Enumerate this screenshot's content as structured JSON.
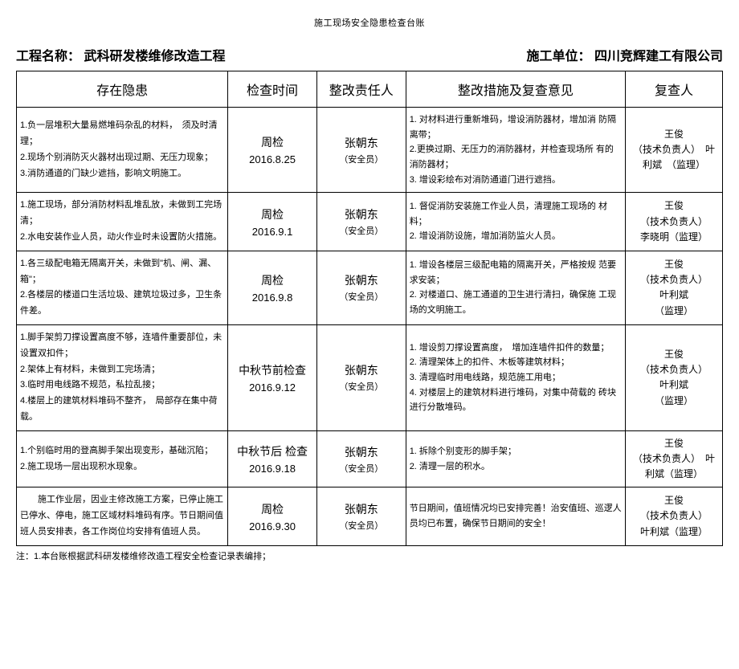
{
  "doc_title": "施工现场安全隐患检查台账",
  "header": {
    "project_label": "工程名称：",
    "project_name": "武科研发楼维修改造工程",
    "contractor_label": "施工单位：",
    "contractor_name": "四川竞辉建工有限公司"
  },
  "columns": {
    "hazard": "存在隐患",
    "time": "检查时间",
    "person": "整改责任人",
    "measure": "整改措施及复查意见",
    "reviewer": "复查人"
  },
  "rows": [
    {
      "hazard": "1.负一层堆积大量易燃堆码杂乱的材料，　须及时清理；\n2.现场个别消防灭火器材出现过期、无压力现象；\n3.消防通道的门缺少遮挡，影响文明施工。",
      "time_main": "周检",
      "time_sub": "2016.8.25",
      "person_main": "张朝东",
      "person_sub": "（安全员）",
      "measure": "1. 对材料进行重新堆码，增设消防器材，增加消 防隔离带；\n2.更换过期、无压力的消防器材，并检查现场所 有的消防器材；\n3. 增设彩绘布对消防通道门进行遮挡。",
      "reviewer": "王俊\n（技术负责人）　叶利斌　（监理）"
    },
    {
      "hazard": "1.施工现场，部分消防材料乱堆乱放，未做到工完场清；\n2.水电安装作业人员，动火作业时未设置防火措施。",
      "time_main": "周检",
      "time_sub": "2016.9.1",
      "person_main": "张朝东",
      "person_sub": "（安全员）",
      "measure": "1. 督促消防安装施工作业人员，清理施工现场的 材料；\n2. 增设消防设施，增加消防监火人员。",
      "reviewer": "王俊\n（技术负责人）\n李晓明（监理）"
    },
    {
      "hazard": "1.各三级配电箱无隔离开关，未做到\"机、闸、漏、箱\"；\n2.各楼层的楼道口生活垃圾、建筑垃圾过多，卫生条 件差。",
      "time_main": "周检",
      "time_sub": "2016.9.8",
      "person_main": "张朝东",
      "person_sub": "（安全员）",
      "measure": "1. 增设各楼层三级配电箱的隔离开关，严格按规 范要求安装；\n2. 对楼道口、施工通道的卫生进行清扫，确保施 工现场的文明施工。",
      "reviewer": "王俊\n（技术负责人）\n叶利斌\n（监理）"
    },
    {
      "hazard": "1.脚手架剪刀撑设置高度不够，连墙件重要部位，未 设置双扣件；\n2.架体上有材料，未做到工完场清；\n3.临时用电线路不规范，私拉乱接；\n4.楼层上的建筑材料堆码不整齐，　局部存在集中荷载。",
      "time_main": "中秋节前检查",
      "time_sub": "2016.9.12",
      "person_main": "张朝东",
      "person_sub": "（安全员）",
      "measure": "1. 增设剪刀撑设置高度，　增加连墙件扣件的数量；\n2. 清理架体上的扣件、木板等建筑材料；\n3. 清理临时用电线路，规范施工用电；\n4. 对楼层上的建筑材料进行堆码，对集中荷载的 砖块进行分散堆码。",
      "reviewer": "王俊\n（技术负责人）\n叶利斌\n（监理）"
    },
    {
      "hazard": "1.个别临时用的登高脚手架出现变形，基础沉陷；\n2.施工现场一层出现积水现象。",
      "time_main": "中秋节后 检查",
      "time_sub": "2016.9.18",
      "person_main": "张朝东",
      "person_sub": "（安全员）",
      "measure": "1. 拆除个别变形的脚手架；\n2. 清理一层的积水。",
      "reviewer": "王俊\n（技术负责人）　叶利斌（监理）"
    },
    {
      "hazard": "　　施工作业层，因业主修改施工方案，已停止施工 已停水、停电，施工区域材料堆码有序。节日期间值 班人员安排表，各工作岗位均安排有值班人员。",
      "time_main": "周检",
      "time_sub": "2016.9.30",
      "person_main": "张朝东",
      "person_sub": "（安全员）",
      "measure": "节日期间，值班情况均已安排完善！治安值班、巡逻人员均已布置，确保节日期间的安全！",
      "reviewer": "王俊\n（技术负责人）\n叶利斌（监理）"
    }
  ],
  "footnote": "注：1.本台账根据武科研发楼维修改造工程安全检查记录表编排；"
}
